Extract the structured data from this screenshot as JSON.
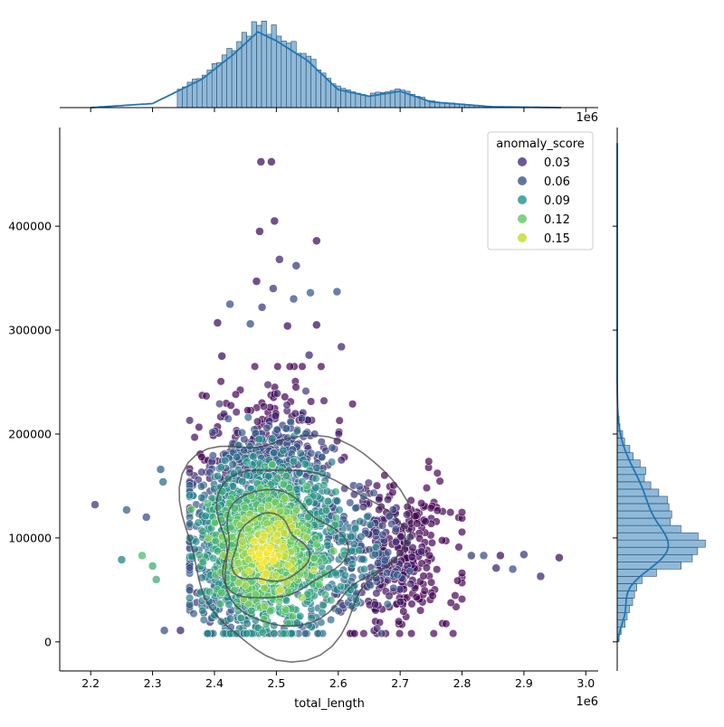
{
  "chart_data": {
    "type": "scatter",
    "variant": "joint-plot (scatter + KDE contours, marginal histograms with KDE)",
    "xlabel": "total_length",
    "ylabel": "",
    "x_offset_label": "1e6",
    "top_offset_label": "1e6",
    "xlim": [
      2.15,
      3.02
    ],
    "ylim": [
      -28000,
      495000
    ],
    "x_ticks": [
      2.2,
      2.3,
      2.4,
      2.5,
      2.6,
      2.7,
      2.8,
      2.9,
      3.0
    ],
    "x_tick_labels": [
      "2.2",
      "2.3",
      "2.4",
      "2.5",
      "2.6",
      "2.7",
      "2.8",
      "2.9",
      "3.0"
    ],
    "y_ticks": [
      0,
      100000,
      200000,
      300000,
      400000
    ],
    "y_tick_labels": [
      "0",
      "100000",
      "200000",
      "300000",
      "400000"
    ],
    "grid": false,
    "legend": {
      "title": "anomaly_score",
      "placement": "top-right",
      "entries": [
        {
          "label": "0.03",
          "color": "#472d7b"
        },
        {
          "label": "0.06",
          "color": "#3b528b"
        },
        {
          "label": "0.09",
          "color": "#21918c"
        },
        {
          "label": "0.12",
          "color": "#5ec962"
        },
        {
          "label": "0.15",
          "color": "#bddf26"
        }
      ]
    },
    "point_alpha": 0.7,
    "kde_contour_color": "#444444",
    "marginal_color": "#1f77b4",
    "marginal_fill": "#8fb9d9",
    "outlier_points": [
      {
        "x": 2.475,
        "y": 462000,
        "score": 0.02
      },
      {
        "x": 2.492,
        "y": 462000,
        "score": 0.02
      },
      {
        "x": 2.497,
        "y": 405000,
        "score": 0.02
      },
      {
        "x": 2.473,
        "y": 395000,
        "score": 0.02
      },
      {
        "x": 2.565,
        "y": 386000,
        "score": 0.02
      },
      {
        "x": 2.505,
        "y": 368000,
        "score": 0.03
      },
      {
        "x": 2.532,
        "y": 362000,
        "score": 0.04
      },
      {
        "x": 2.468,
        "y": 347000,
        "score": 0.02
      },
      {
        "x": 2.495,
        "y": 340000,
        "score": 0.04
      },
      {
        "x": 2.598,
        "y": 337000,
        "score": 0.05
      },
      {
        "x": 2.425,
        "y": 325000,
        "score": 0.05
      },
      {
        "x": 2.477,
        "y": 322000,
        "score": 0.04
      },
      {
        "x": 2.555,
        "y": 336000,
        "score": 0.06
      },
      {
        "x": 2.528,
        "y": 330000,
        "score": 0.05
      },
      {
        "x": 2.405,
        "y": 307000,
        "score": 0.02
      },
      {
        "x": 2.458,
        "y": 306000,
        "score": 0.05
      },
      {
        "x": 2.605,
        "y": 284000,
        "score": 0.03
      },
      {
        "x": 2.518,
        "y": 304000,
        "score": 0.02
      },
      {
        "x": 2.565,
        "y": 305000,
        "score": 0.02
      },
      {
        "x": 2.412,
        "y": 275000,
        "score": 0.02
      },
      {
        "x": 2.553,
        "y": 276000,
        "score": 0.03
      },
      {
        "x": 2.207,
        "y": 132000,
        "score": 0.04
      },
      {
        "x": 2.258,
        "y": 127000,
        "score": 0.06
      },
      {
        "x": 2.29,
        "y": 120000,
        "score": 0.05
      },
      {
        "x": 2.313,
        "y": 166000,
        "score": 0.06
      },
      {
        "x": 2.317,
        "y": 154000,
        "score": 0.07
      },
      {
        "x": 2.25,
        "y": 79000,
        "score": 0.08
      },
      {
        "x": 2.283,
        "y": 83000,
        "score": 0.12
      },
      {
        "x": 2.3,
        "y": 73000,
        "score": 0.11
      },
      {
        "x": 2.306,
        "y": 60000,
        "score": 0.11
      },
      {
        "x": 2.319,
        "y": 11000,
        "score": 0.05
      },
      {
        "x": 2.345,
        "y": 11000,
        "score": 0.03
      },
      {
        "x": 2.855,
        "y": 71000,
        "score": 0.03
      },
      {
        "x": 2.862,
        "y": 83000,
        "score": 0.02
      },
      {
        "x": 2.882,
        "y": 70000,
        "score": 0.05
      },
      {
        "x": 2.9,
        "y": 84000,
        "score": 0.04
      },
      {
        "x": 2.927,
        "y": 63000,
        "score": 0.03
      },
      {
        "x": 2.957,
        "y": 81000,
        "score": 0.02
      },
      {
        "x": 2.815,
        "y": 83000,
        "score": 0.04
      },
      {
        "x": 2.835,
        "y": 83000,
        "score": 0.05
      }
    ],
    "kde_contours_x_hist": [
      {
        "x": 2.2,
        "density": 0.0
      },
      {
        "x": 2.3,
        "density": 0.05
      },
      {
        "x": 2.38,
        "density": 0.35
      },
      {
        "x": 2.43,
        "density": 0.65
      },
      {
        "x": 2.47,
        "density": 0.93
      },
      {
        "x": 2.5,
        "density": 0.82
      },
      {
        "x": 2.55,
        "density": 0.58
      },
      {
        "x": 2.6,
        "density": 0.22
      },
      {
        "x": 2.65,
        "density": 0.14
      },
      {
        "x": 2.7,
        "density": 0.2
      },
      {
        "x": 2.75,
        "density": 0.07
      },
      {
        "x": 2.85,
        "density": 0.01
      },
      {
        "x": 2.96,
        "density": 0.0
      }
    ],
    "kde_y_hist_peak": 88000
  }
}
